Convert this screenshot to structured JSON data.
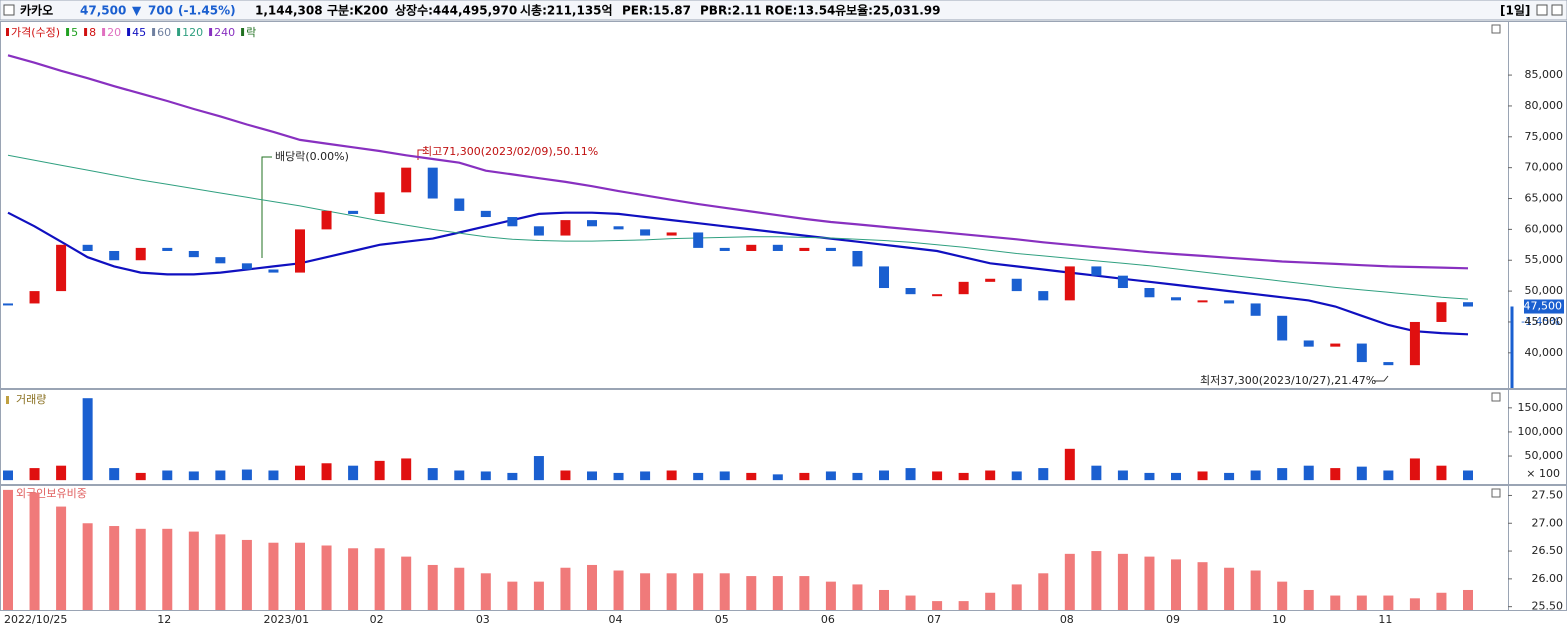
{
  "header": {
    "items": [
      "카카오",
      "47,500",
      "▼",
      "700",
      "(-1.45%)",
      "1,144,308",
      "구분:K200",
      "상장수:444,495,970",
      "시총:211,135억",
      "PER:15.87",
      "PBR:2.11",
      "ROE:13.54",
      "유보율:25,031.99",
      "[1일]"
    ]
  },
  "chart_data": [
    {
      "type": "candlestick",
      "legend": [
        {
          "name": "가격(수정)",
          "color": "#d01010"
        },
        {
          "name": "5",
          "color": "#20a020"
        },
        {
          "name": "8",
          "color": "#d01010"
        },
        {
          "name": "20",
          "color": "#e070c0"
        },
        {
          "name": "45",
          "color": "#1010c0"
        },
        {
          "name": "60",
          "color": "#7080a0"
        },
        {
          "name": "120",
          "color": "#30a080"
        },
        {
          "name": "240",
          "color": "#8830c0"
        },
        {
          "name": "락",
          "color": "#207020"
        }
      ],
      "series": [
        {
          "up_color": "#e01010",
          "down_color": "#1a5fd0",
          "values": [
            48000,
            50000,
            57500,
            56500,
            55000,
            57000,
            56500,
            55500,
            54500,
            53500,
            53000,
            60000,
            63000,
            62500,
            66000,
            70000,
            65000,
            63000,
            62000,
            60500,
            59000,
            61500,
            60500,
            60000,
            59000,
            59500,
            57000,
            56500,
            57500,
            56500,
            57000,
            56500,
            54000,
            50500,
            49500,
            49500,
            51500,
            52000,
            50000,
            48500,
            54000,
            52500,
            50500,
            49000,
            48500,
            48500,
            48000,
            46000,
            42000,
            41000,
            41500,
            38500,
            38000,
            45000,
            48200,
            47500
          ]
        },
        {
          "color": "#1010c0",
          "values": [
            62700,
            60500,
            58000,
            55500,
            54000,
            53000,
            52700,
            52700,
            53000,
            53500,
            54000,
            54500,
            55500,
            56500,
            57500,
            58000,
            58500,
            59500,
            60500,
            61500,
            62500,
            62700,
            62700,
            62500,
            62000,
            61500,
            61000,
            60500,
            60000,
            59500,
            59000,
            58500,
            58000,
            57500,
            57000,
            56500,
            55500,
            54500,
            54000,
            53500,
            53000,
            52500,
            52000,
            51500,
            51000,
            50500,
            50000,
            49500,
            49000,
            48500,
            47500,
            46000,
            44500,
            43500,
            43200,
            43000
          ]
        },
        {
          "color": "#30a080",
          "values": [
            72000,
            71200,
            70400,
            69600,
            68800,
            68000,
            67300,
            66600,
            65900,
            65200,
            64500,
            63800,
            63000,
            62200,
            61400,
            60700,
            60000,
            59400,
            58800,
            58400,
            58200,
            58100,
            58100,
            58200,
            58300,
            58500,
            58600,
            58700,
            58800,
            58800,
            58700,
            58600,
            58400,
            58200,
            57900,
            57500,
            57100,
            56600,
            56100,
            55700,
            55300,
            54900,
            54500,
            54100,
            53600,
            53100,
            52600,
            52100,
            51600,
            51100,
            50600,
            50200,
            49800,
            49400,
            49000,
            48700
          ]
        },
        {
          "color": "#8830c0",
          "values": [
            88200,
            87000,
            85700,
            84500,
            83200,
            82000,
            80800,
            79500,
            78300,
            77000,
            75800,
            74500,
            73900,
            73300,
            72700,
            72000,
            71400,
            70800,
            69500,
            68900,
            68300,
            67700,
            67000,
            66200,
            65500,
            64800,
            64100,
            63500,
            62900,
            62300,
            61700,
            61200,
            60800,
            60400,
            60000,
            59600,
            59200,
            58800,
            58400,
            57900,
            57500,
            57100,
            56700,
            56300,
            56000,
            55700,
            55400,
            55100,
            54800,
            54600,
            54400,
            54200,
            54000,
            53900,
            53800,
            53700
          ]
        }
      ],
      "ylim": [
        34300,
        93600
      ],
      "yticks": [
        {
          "value": 40000,
          "label": "40,000"
        },
        {
          "value": 45000,
          "label": "45,000"
        },
        {
          "value": 50000,
          "label": "50,000"
        },
        {
          "value": 55000,
          "label": "55,000"
        },
        {
          "value": 60000,
          "label": "60,000"
        },
        {
          "value": 65000,
          "label": "65,000"
        },
        {
          "value": 70000,
          "label": "70,000"
        },
        {
          "value": 75000,
          "label": "75,000"
        },
        {
          "value": 80000,
          "label": "80,000"
        },
        {
          "value": 85000,
          "label": "85,000"
        }
      ],
      "annotations": [
        "최고71,300(2023/02/09),50.11%",
        "최저37,300(2023/10/27),21.47%",
        "배당락(0.00%)"
      ],
      "last_price": {
        "value": 47500,
        "label": "47,500"
      },
      "last_change": "-1.45%"
    },
    {
      "type": "bar",
      "title": "거래량",
      "unit_label": "× 100",
      "values": [
        20000,
        25000,
        30000,
        170000,
        25000,
        15000,
        20000,
        18000,
        20000,
        22000,
        20000,
        30000,
        35000,
        30000,
        40000,
        45000,
        25000,
        20000,
        18000,
        15000,
        50000,
        20000,
        18000,
        15000,
        18000,
        20000,
        15000,
        18000,
        15000,
        12000,
        15000,
        18000,
        15000,
        20000,
        25000,
        18000,
        15000,
        20000,
        18000,
        25000,
        65000,
        30000,
        20000,
        15000,
        15000,
        18000,
        15000,
        20000,
        25000,
        30000,
        25000,
        28000,
        20000,
        45000,
        30000,
        20000
      ],
      "ylim": [
        -8000,
        187000
      ],
      "yticks": [
        {
          "value": 50000,
          "label": "50,000"
        },
        {
          "value": 100000,
          "label": "100,000"
        },
        {
          "value": 150000,
          "label": "150,000"
        }
      ]
    },
    {
      "type": "bar",
      "title": "외국인보유비중",
      "color": "#f07a7a",
      "categories": [
        "2022/10/25",
        null,
        null,
        null,
        null,
        null,
        "12",
        null,
        null,
        null,
        "2023/01",
        null,
        null,
        null,
        "02",
        null,
        null,
        null,
        "03",
        null,
        null,
        null,
        null,
        "04",
        null,
        null,
        null,
        "05",
        null,
        null,
        null,
        "06",
        null,
        null,
        null,
        "07",
        null,
        null,
        null,
        null,
        "08",
        null,
        null,
        null,
        "09",
        null,
        null,
        null,
        "10",
        null,
        null,
        null,
        "11",
        null,
        null,
        null
      ],
      "values": [
        27.6,
        27.55,
        27.3,
        27.0,
        26.95,
        26.9,
        26.9,
        26.85,
        26.8,
        26.7,
        26.65,
        26.65,
        26.6,
        26.55,
        26.55,
        26.4,
        26.25,
        26.2,
        26.1,
        25.95,
        25.95,
        26.2,
        26.25,
        26.15,
        26.1,
        26.1,
        26.1,
        26.1,
        26.05,
        26.05,
        26.05,
        25.95,
        25.9,
        25.8,
        25.7,
        25.6,
        25.6,
        25.75,
        25.9,
        26.1,
        26.45,
        26.5,
        26.45,
        26.4,
        26.35,
        26.3,
        26.2,
        26.15,
        25.95,
        25.8,
        25.7,
        25.7,
        25.7,
        25.65,
        25.75,
        25.8
      ],
      "ylim": [
        25.44,
        27.67
      ],
      "yticks": [
        {
          "value": 25.5,
          "label": "25.50"
        },
        {
          "value": 26.0,
          "label": "26.00"
        },
        {
          "value": 26.5,
          "label": "26.50"
        },
        {
          "value": 27.0,
          "label": "27.00"
        },
        {
          "value": 27.5,
          "label": "27.50"
        }
      ]
    }
  ]
}
